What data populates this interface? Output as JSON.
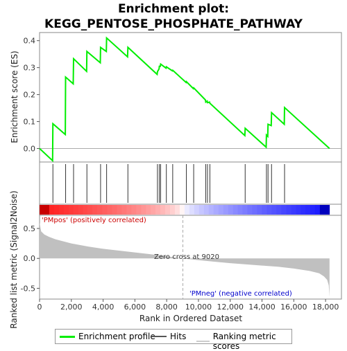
{
  "title_line1": "Enrichment plot:",
  "title_line2": "KEGG_PENTOSE_PHOSPHATE_PATHWAY",
  "chart_data": {
    "type": "line",
    "es_curve": {
      "ylabel": "Enrichment score (ES)",
      "ylim": [
        -0.05,
        0.43
      ],
      "yticks": [
        0.0,
        0.1,
        0.2,
        0.3,
        0.4
      ],
      "series": [
        {
          "name": "Enrichment profile",
          "color": "#00ee00",
          "x": [
            0,
            820,
            840,
            1620,
            1640,
            2120,
            2140,
            2960,
            2980,
            3820,
            3840,
            4200,
            4220,
            5540,
            5560,
            7400,
            7420,
            7520,
            7540,
            7600,
            7620,
            7960,
            7980,
            8360,
            8380,
            9220,
            9240,
            9680,
            9700,
            10440,
            10460,
            10550,
            10570,
            10700,
            10720,
            12920,
            12940,
            14260,
            14280,
            14360,
            14380,
            14580,
            14600,
            15400,
            15420,
            18250
          ],
          "y": [
            0.0,
            -0.045,
            0.092,
            0.052,
            0.265,
            0.24,
            0.333,
            0.286,
            0.36,
            0.318,
            0.375,
            0.36,
            0.41,
            0.34,
            0.375,
            0.275,
            0.285,
            0.295,
            0.305,
            0.305,
            0.313,
            0.298,
            0.303,
            0.288,
            0.29,
            0.245,
            0.248,
            0.222,
            0.225,
            0.18,
            0.172,
            0.176,
            0.17,
            0.172,
            0.168,
            0.048,
            0.075,
            0.005,
            0.05,
            0.045,
            0.09,
            0.085,
            0.133,
            0.09,
            0.152,
            0.0
          ]
        }
      ]
    },
    "hits": [
      840,
      1640,
      2140,
      2980,
      3840,
      4220,
      5560,
      7420,
      7540,
      7620,
      7980,
      8380,
      9240,
      9700,
      10460,
      10570,
      10720,
      12940,
      14280,
      14380,
      14600,
      15420
    ],
    "hits_label": "Hits",
    "ranked_metric": {
      "ylabel": "Ranked list metric (Signal2Noise)",
      "ylim": [
        -0.68,
        0.72
      ],
      "yticks": [
        0.5,
        0.0,
        -0.5
      ],
      "zero_cross": 9020,
      "zero_cross_label": "Zero cross at 9020",
      "pos_label": "'PMpos' (positively correlated)",
      "neg_label": "'PMneg' (negative correlated)",
      "legend_label": "Ranking metric scores",
      "x": [
        0,
        100,
        300,
        600,
        1000,
        2000,
        3000,
        4000,
        5000,
        6000,
        7000,
        8000,
        9020,
        10000,
        11000,
        12000,
        13000,
        14000,
        15000,
        16000,
        17000,
        17600,
        17900,
        18100,
        18200,
        18250
      ],
      "y": [
        0.6,
        0.45,
        0.4,
        0.36,
        0.32,
        0.25,
        0.2,
        0.16,
        0.13,
        0.1,
        0.07,
        0.035,
        0.0,
        -0.03,
        -0.055,
        -0.08,
        -0.1,
        -0.12,
        -0.14,
        -0.17,
        -0.21,
        -0.25,
        -0.3,
        -0.36,
        -0.45,
        -0.64
      ]
    },
    "xlabel": "Rank in Ordered Dataset",
    "xlim": [
      0,
      19000
    ],
    "xticks": [
      0,
      2000,
      4000,
      6000,
      8000,
      10000,
      12000,
      14000,
      16000,
      18000
    ]
  }
}
